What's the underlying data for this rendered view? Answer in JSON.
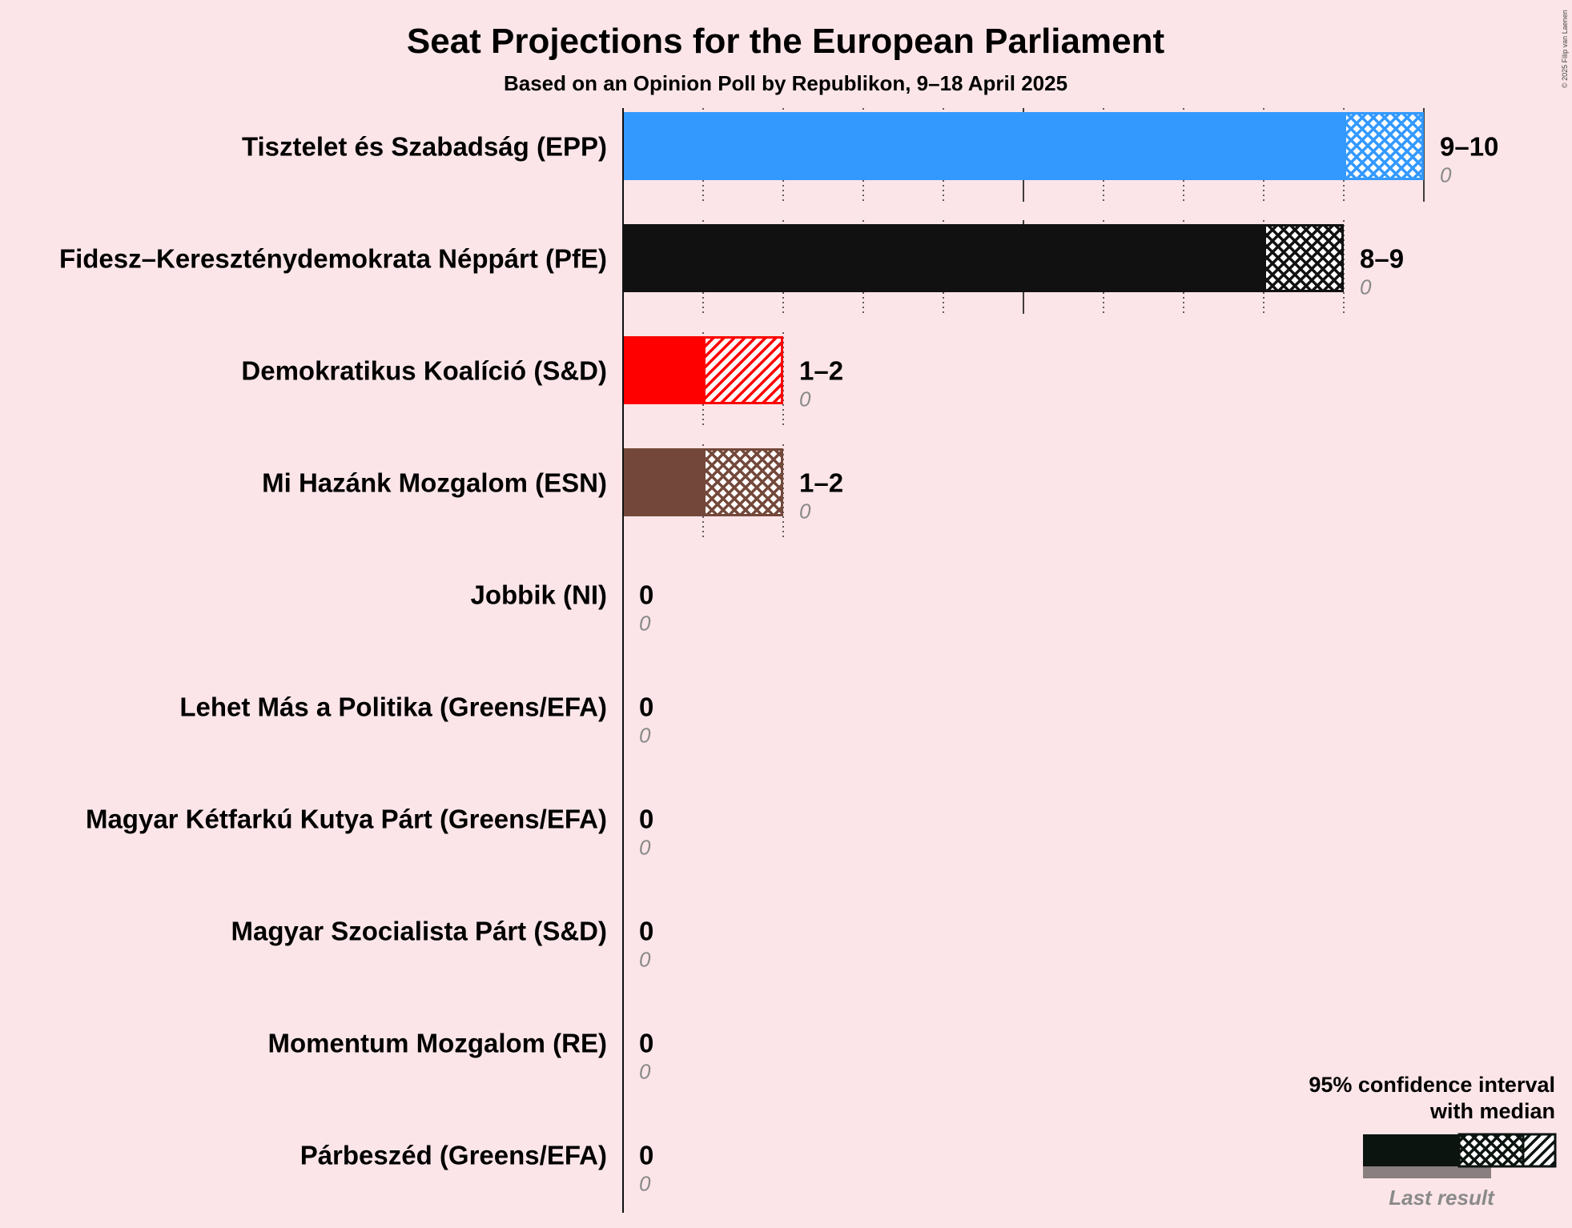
{
  "title": "Seat Projections for the European Parliament",
  "subtitle": "Based on an Opinion Poll by Republikon, 9–18 April 2025",
  "copyright": "© 2025 Filip van Laenen",
  "legend": {
    "line1": "95% confidence interval",
    "line2": "with median",
    "last_result": "Last result"
  },
  "chart_data": {
    "type": "bar",
    "orientation": "horizontal",
    "xlim": [
      0,
      10
    ],
    "categories": [
      "Tisztelet és Szabadság (EPP)",
      "Fidesz–Kereszténydemokrata Néppárt (PfE)",
      "Demokratikus Koalíció (S&D)",
      "Mi Hazánk Mozgalom (ESN)",
      "Jobbik (NI)",
      "Lehet Más a Politika (Greens/EFA)",
      "Magyar Kétfarkú Kutya Párt (Greens/EFA)",
      "Magyar Szocialista Párt (S&D)",
      "Momentum Mozgalom (RE)",
      "Párbeszéd (Greens/EFA)"
    ],
    "series": [
      {
        "name": "95% confidence interval",
        "low": [
          9,
          8,
          1,
          1,
          0,
          0,
          0,
          0,
          0,
          0
        ],
        "high": [
          10,
          9,
          2,
          2,
          0,
          0,
          0,
          0,
          0,
          0
        ]
      },
      {
        "name": "with median",
        "values": [
          10,
          9,
          1,
          2,
          0,
          0,
          0,
          0,
          0,
          0
        ]
      },
      {
        "name": "Last result",
        "values": [
          0,
          0,
          0,
          0,
          0,
          0,
          0,
          0,
          0,
          0
        ]
      }
    ],
    "range_labels": [
      "9–10",
      "8–9",
      "1–2",
      "1–2",
      "0",
      "0",
      "0",
      "0",
      "0",
      "0"
    ],
    "last_labels": [
      "0",
      "0",
      "0",
      "0",
      "0",
      "0",
      "0",
      "0",
      "0",
      "0"
    ],
    "colors": [
      "#3399ff",
      "#111111",
      "#ff0000",
      "#73483a",
      "#111111",
      "#111111",
      "#111111",
      "#111111",
      "#111111",
      "#111111"
    ],
    "hatch": [
      "cross",
      "cross",
      "diagonal",
      "cross",
      "cross",
      "cross",
      "cross",
      "cross",
      "cross",
      "cross"
    ]
  }
}
